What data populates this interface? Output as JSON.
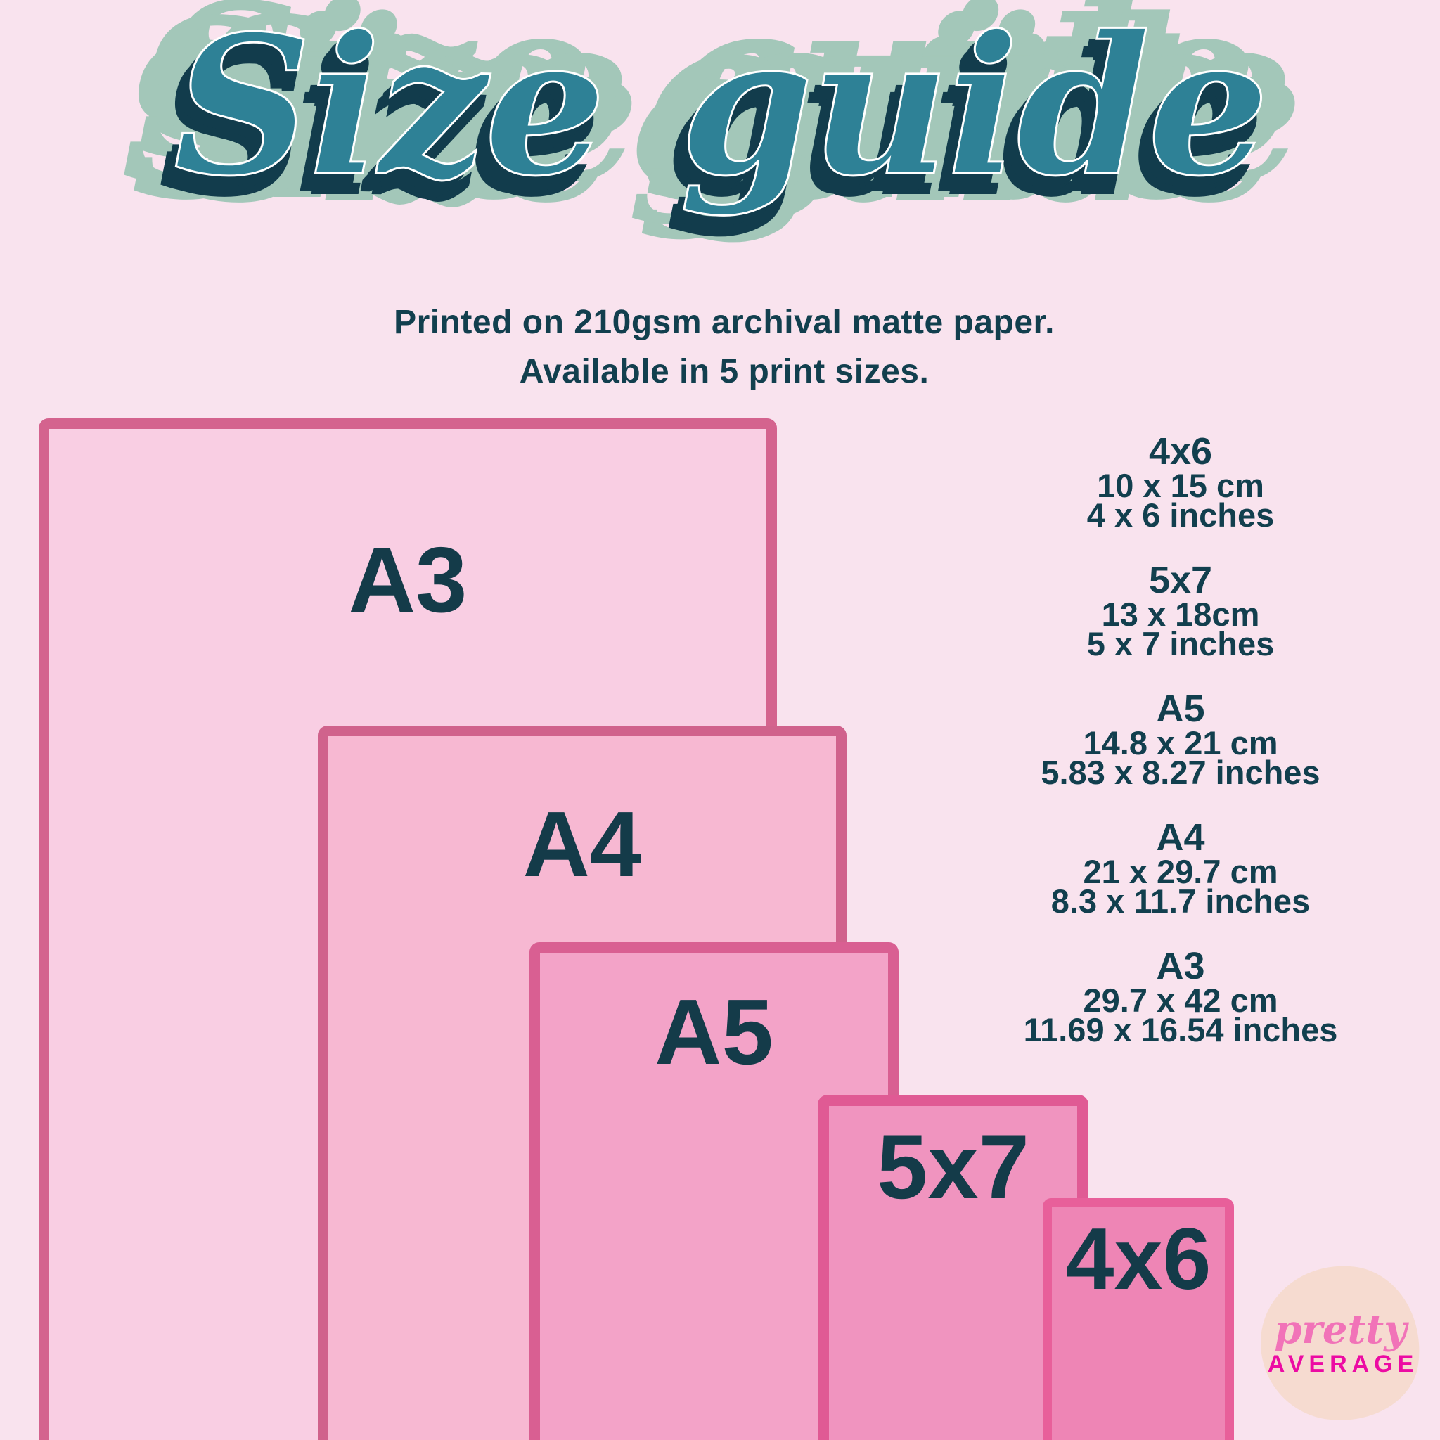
{
  "title": "Size guide",
  "subtitle": {
    "line1": "Printed on 210gsm archival matte paper.",
    "line2": "Available in 5 print sizes."
  },
  "rects": [
    {
      "label": "A3",
      "fill": "#f9cee3",
      "border": "#d4638e"
    },
    {
      "label": "A4",
      "fill": "#f7b8d2",
      "border": "#d0628c"
    },
    {
      "label": "A5",
      "fill": "#f3a3c8",
      "border": "#d95f92"
    },
    {
      "label": "5x7",
      "fill": "#f094bf",
      "border": "#e05a94"
    },
    {
      "label": "4x6",
      "fill": "#ee85b5",
      "border": "#e85f9a"
    }
  ],
  "legend": [
    {
      "name": "4x6",
      "cm": "10 x 15 cm",
      "inches": "4 x 6 inches"
    },
    {
      "name": "5x7",
      "cm": "13 x 18cm",
      "inches": "5 x 7 inches"
    },
    {
      "name": "A5",
      "cm": "14.8 x 21 cm",
      "inches": "5.83 x 8.27 inches"
    },
    {
      "name": "A4",
      "cm": "21 x 29.7 cm",
      "inches": "8.3 x 11.7 inches"
    },
    {
      "name": "A3",
      "cm": "29.7 x 42 cm",
      "inches": "11.69 x 16.54 inches"
    }
  ],
  "logo": {
    "line1": "pretty",
    "line2": "AVERAGE"
  },
  "colors": {
    "background": "#f9e3ee",
    "text_dark_teal": "#123f4e",
    "rect_label": "#143b49",
    "title_teal": "#2e8196",
    "title_inline_white": "#ffffff",
    "title_navy_shadow": "#123c4c",
    "title_sage_backdrop": "#a3c7b9",
    "logo_blob": "#f6dbd0",
    "logo_pink_script": "#f173b8",
    "logo_magenta_caps": "#ec0ba3"
  }
}
